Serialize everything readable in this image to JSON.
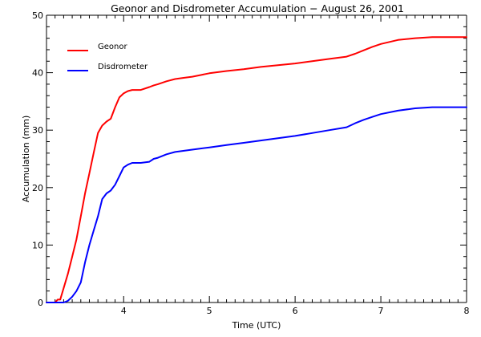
{
  "chart_data": {
    "type": "line",
    "title": "Geonor and Disdrometer Accumulation − August 26, 2001",
    "xlabel": "Time (UTC)",
    "ylabel": "Accumulation (mm)",
    "xlim": [
      3.1,
      8.0
    ],
    "ylim": [
      0,
      50
    ],
    "x_ticks": [
      4,
      5,
      6,
      7,
      8
    ],
    "y_ticks": [
      0,
      10,
      20,
      30,
      40,
      50
    ],
    "grid": false,
    "legend_position": "top-left",
    "series": [
      {
        "name": "Geonor",
        "color": "#ff0000",
        "x": [
          3.1,
          3.2,
          3.23,
          3.26,
          3.3,
          3.35,
          3.4,
          3.45,
          3.5,
          3.55,
          3.6,
          3.65,
          3.7,
          3.75,
          3.8,
          3.85,
          3.9,
          3.95,
          4.0,
          4.05,
          4.1,
          4.2,
          4.3,
          4.35,
          4.4,
          4.5,
          4.6,
          4.7,
          4.8,
          4.9,
          5.0,
          5.2,
          5.4,
          5.6,
          5.8,
          6.0,
          6.2,
          6.4,
          6.6,
          6.7,
          6.8,
          6.9,
          7.0,
          7.2,
          7.4,
          7.6,
          7.8,
          8.0
        ],
        "y": [
          0,
          0,
          0.5,
          0.5,
          2.5,
          5,
          8,
          11,
          15,
          19,
          22.5,
          26,
          29.5,
          30.8,
          31.5,
          32,
          34,
          35.7,
          36.4,
          36.8,
          37,
          37,
          37.5,
          37.8,
          38,
          38.5,
          38.9,
          39.1,
          39.3,
          39.6,
          39.9,
          40.3,
          40.6,
          41,
          41.3,
          41.6,
          42,
          42.4,
          42.8,
          43.3,
          43.9,
          44.5,
          45,
          45.7,
          46,
          46.2,
          46.2,
          46.2
        ]
      },
      {
        "name": "Disdrometer",
        "color": "#0000ff",
        "x": [
          3.1,
          3.3,
          3.35,
          3.4,
          3.45,
          3.5,
          3.55,
          3.6,
          3.65,
          3.7,
          3.75,
          3.8,
          3.85,
          3.9,
          3.95,
          4.0,
          4.05,
          4.1,
          4.2,
          4.3,
          4.35,
          4.4,
          4.5,
          4.6,
          4.8,
          5.0,
          5.2,
          5.4,
          5.6,
          5.8,
          6.0,
          6.2,
          6.4,
          6.6,
          6.7,
          6.8,
          6.9,
          7.0,
          7.2,
          7.4,
          7.6,
          7.8,
          8.0
        ],
        "y": [
          0,
          0,
          0.3,
          1,
          2,
          3.5,
          7,
          10,
          12.5,
          15,
          18,
          19,
          19.5,
          20.5,
          22,
          23.5,
          24,
          24.3,
          24.3,
          24.5,
          25,
          25.2,
          25.8,
          26.2,
          26.6,
          27,
          27.4,
          27.8,
          28.2,
          28.6,
          29,
          29.5,
          30,
          30.5,
          31.2,
          31.8,
          32.3,
          32.8,
          33.4,
          33.8,
          34,
          34,
          34
        ]
      }
    ]
  }
}
